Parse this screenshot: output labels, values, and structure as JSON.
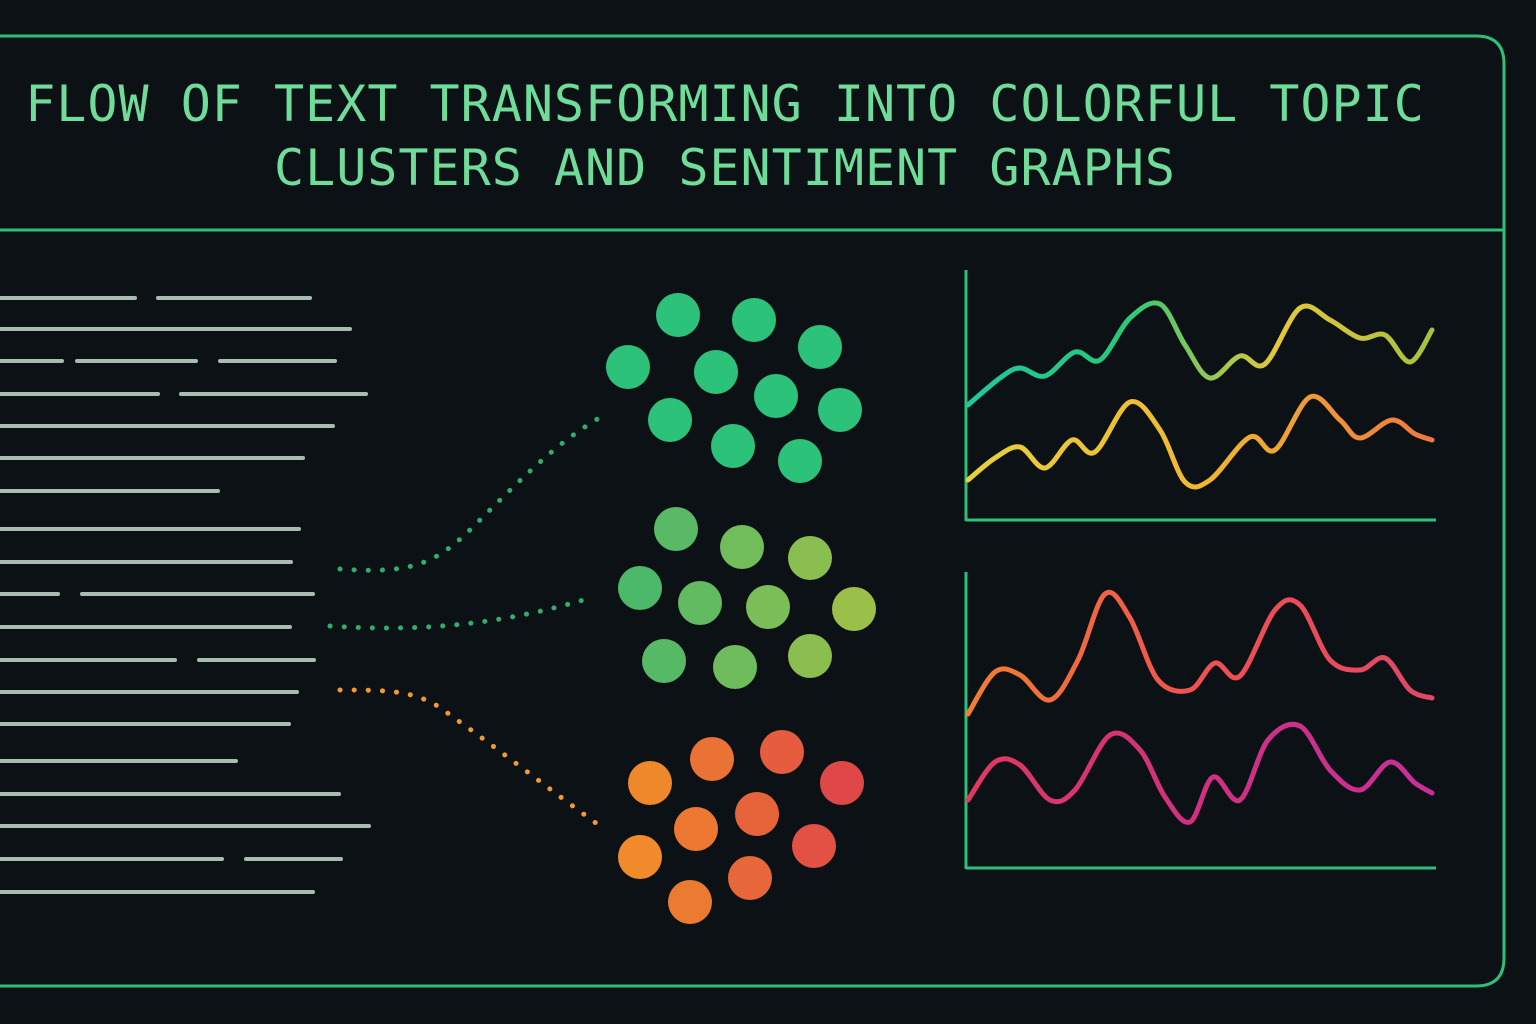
{
  "title_line_1": "FLOW OF TEXT TRANSFORMING INTO COLORFUL TOPIC",
  "title_line_2": "CLUSTERS AND SENTIMENT GRAPHS",
  "colors": {
    "background": "#0b1114",
    "frame": "#2fbf7a",
    "title": "#6fdc9a",
    "text_lines": "#a7bdb0",
    "cluster_1": "#2cc27a",
    "cluster_2_start": "#4cb86a",
    "cluster_2_end": "#9ac04a",
    "cluster_3_start": "#f08a2a",
    "cluster_3_end": "#e04848",
    "connector_1": "#2fae6e",
    "connector_2": "#2fae6e",
    "connector_3": "#f09a30",
    "graph_1_line_1": [
      "#1fc8a0",
      "#28c878",
      "#e6c83a",
      "#a8c040"
    ],
    "graph_1_line_2": [
      "#e6d040",
      "#f0b830",
      "#f07840"
    ],
    "graph_2_line_1": [
      "#f08030",
      "#f05050",
      "#e04868"
    ],
    "graph_2_line_2": [
      "#e03860",
      "#d03080",
      "#c83098"
    ]
  },
  "sections": {
    "source_text": "text-lines",
    "topic_clusters": 3,
    "sentiment_graphs": 2
  }
}
